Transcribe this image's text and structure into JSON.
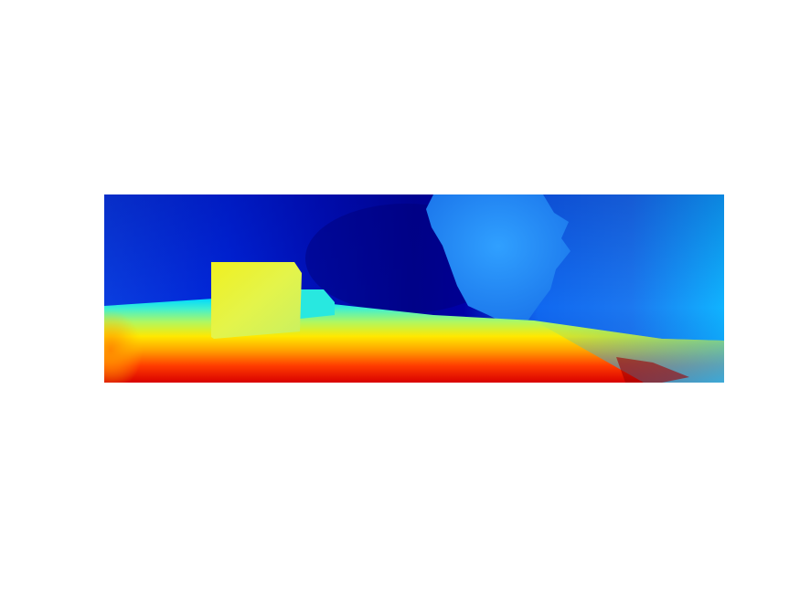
{
  "image": {
    "kind": "depth-map",
    "colormap": "jet",
    "background": "#ffffff",
    "colors": {
      "far": "#00008f",
      "mid_far": "#0a46e6",
      "mid": "#00c8ff",
      "mid_near": "#f0f04a",
      "near": "#ff7a00",
      "nearest": "#e60000"
    },
    "depth_order": {
      "box": 0.62,
      "back_wall_left": 0.12,
      "back_wall_center": 0.04,
      "plant_blob": 0.28,
      "back_wall_right": 0.22,
      "floor_front": 0.98
    }
  }
}
